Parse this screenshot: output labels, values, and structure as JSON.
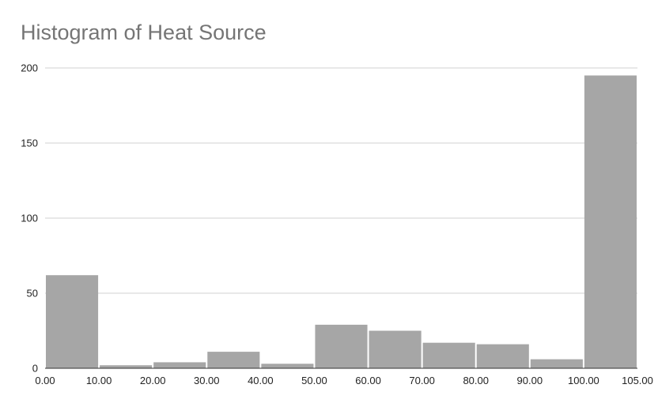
{
  "chart_data": {
    "type": "bar",
    "title": "Histogram of Heat Source",
    "xlabel": "",
    "ylabel": "",
    "ylim": [
      0,
      200
    ],
    "y_ticks": [
      "0",
      "50",
      "100",
      "150",
      "200"
    ],
    "y_tick_values": [
      0,
      50,
      100,
      150,
      200
    ],
    "x_tick_labels": [
      "0.00",
      "10.00",
      "20.00",
      "30.00",
      "40.00",
      "50.00",
      "60.00",
      "70.00",
      "80.00",
      "90.00",
      "100.00",
      "105.00"
    ],
    "bins": [
      {
        "start": 0,
        "end": 10,
        "value": 62
      },
      {
        "start": 10,
        "end": 20,
        "value": 2
      },
      {
        "start": 20,
        "end": 30,
        "value": 4
      },
      {
        "start": 30,
        "end": 40,
        "value": 11
      },
      {
        "start": 40,
        "end": 50,
        "value": 3
      },
      {
        "start": 50,
        "end": 60,
        "value": 29
      },
      {
        "start": 60,
        "end": 70,
        "value": 25
      },
      {
        "start": 70,
        "end": 80,
        "value": 17
      },
      {
        "start": 80,
        "end": 90,
        "value": 16
      },
      {
        "start": 90,
        "end": 100,
        "value": 6
      },
      {
        "start": 100,
        "end": 105,
        "value": 195
      }
    ],
    "grid": true,
    "legend": "none",
    "bar_color": "#a6a6a6"
  }
}
